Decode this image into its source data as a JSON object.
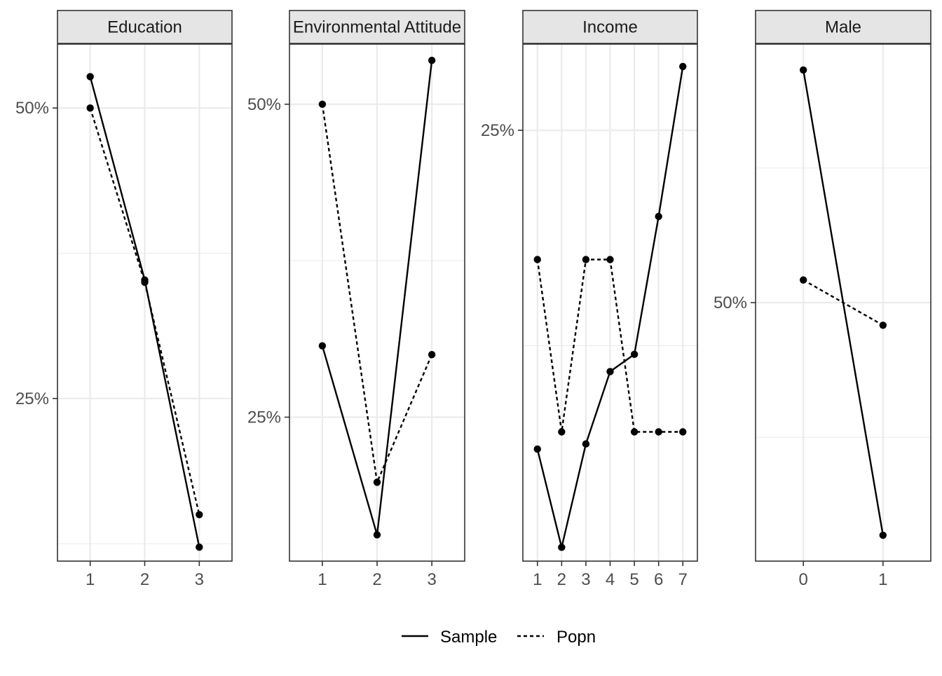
{
  "chart_data": {
    "type": "line",
    "legend": {
      "placement": "bottom",
      "entries": [
        {
          "name": "Sample",
          "linetype": "solid"
        },
        {
          "name": "Popn",
          "linetype": "dotted"
        }
      ]
    },
    "colors": {
      "line": "#000000",
      "strip_fill": "#e5e5e5",
      "grid": "#ebebeb",
      "panel_border": "#333333"
    },
    "grid": true,
    "facets": [
      {
        "title": "Education",
        "x": [
          "1",
          "2",
          "3"
        ],
        "xlim": [
          0.4,
          3.6
        ],
        "ylim": [
          0.11,
          0.555
        ],
        "y_ticks": [
          0.25,
          0.5
        ],
        "y_tick_labels": [
          "25%",
          "50%"
        ],
        "series": [
          {
            "name": "Sample",
            "values": [
              0.527,
              0.352,
              0.122
            ]
          },
          {
            "name": "Popn",
            "values": [
              0.5,
              0.35,
              0.15
            ]
          }
        ]
      },
      {
        "title": "Environmental Attitude",
        "x": [
          "1",
          "2",
          "3"
        ],
        "xlim": [
          0.4,
          3.6
        ],
        "ylim": [
          0.135,
          0.548
        ],
        "y_ticks": [
          0.25,
          0.5
        ],
        "y_tick_labels": [
          "25%",
          "50%"
        ],
        "series": [
          {
            "name": "Sample",
            "values": [
              0.307,
              0.156,
              0.535
            ]
          },
          {
            "name": "Popn",
            "values": [
              0.5,
              0.198,
              0.3
            ]
          }
        ]
      },
      {
        "title": "Income",
        "x": [
          "1",
          "2",
          "3",
          "4",
          "5",
          "6",
          "7"
        ],
        "xlim": [
          0.4,
          7.6
        ],
        "ylim": [
          0.0,
          0.3
        ],
        "y_ticks": [
          0.25
        ],
        "y_tick_labels": [
          "25%"
        ],
        "series": [
          {
            "name": "Sample",
            "values": [
              0.065,
              0.008,
              0.068,
              0.11,
              0.12,
              0.2,
              0.287
            ]
          },
          {
            "name": "Popn",
            "values": [
              0.175,
              0.075,
              0.175,
              0.175,
              0.075,
              0.075,
              0.075
            ]
          }
        ]
      },
      {
        "title": "Male",
        "x": [
          "0",
          "1"
        ],
        "xlim": [
          0.4,
          2.6
        ],
        "ylim": [
          0.26,
          0.74
        ],
        "y_ticks": [
          0.5
        ],
        "y_tick_labels": [
          "50%"
        ],
        "series": [
          {
            "name": "Sample",
            "values": [
              0.716,
              0.284
            ]
          },
          {
            "name": "Popn",
            "values": [
              0.521,
              0.479
            ]
          }
        ]
      }
    ]
  }
}
